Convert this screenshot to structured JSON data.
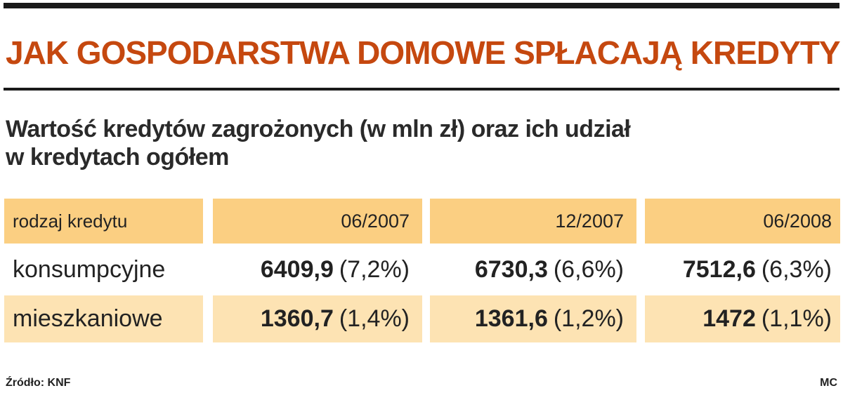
{
  "header": {
    "title": "JAK GOSPODARSTWA DOMOWE SPŁACAJĄ KREDYTY",
    "subtitle_line1": "Wartość kredytów zagrożonych (w mln zł) oraz ich udział",
    "subtitle_line2": "w kredytach ogółem"
  },
  "footer": {
    "source": "Źródło: KNF",
    "author": "MC"
  },
  "colors": {
    "title": "#c5480f",
    "header_fill": "#fbcf82",
    "row_shade": "#fde3b3"
  },
  "chart_data": {
    "type": "table",
    "columns": [
      "rodzaj kredytu",
      "06/2007",
      "12/2007",
      "06/2008"
    ],
    "rows": [
      {
        "label": "konsumpcyjne",
        "cells": [
          {
            "value": "6409,9",
            "share": "(7,2%)"
          },
          {
            "value": "6730,3",
            "share": "(6,6%)"
          },
          {
            "value": "7512,6",
            "share": "(6,3%)"
          }
        ]
      },
      {
        "label": "mieszkaniowe",
        "cells": [
          {
            "value": "1360,7",
            "share": "(1,4%)"
          },
          {
            "value": "1361,6",
            "share": "(1,2%)"
          },
          {
            "value": "1472",
            "share": "(1,1%)"
          }
        ]
      }
    ]
  }
}
